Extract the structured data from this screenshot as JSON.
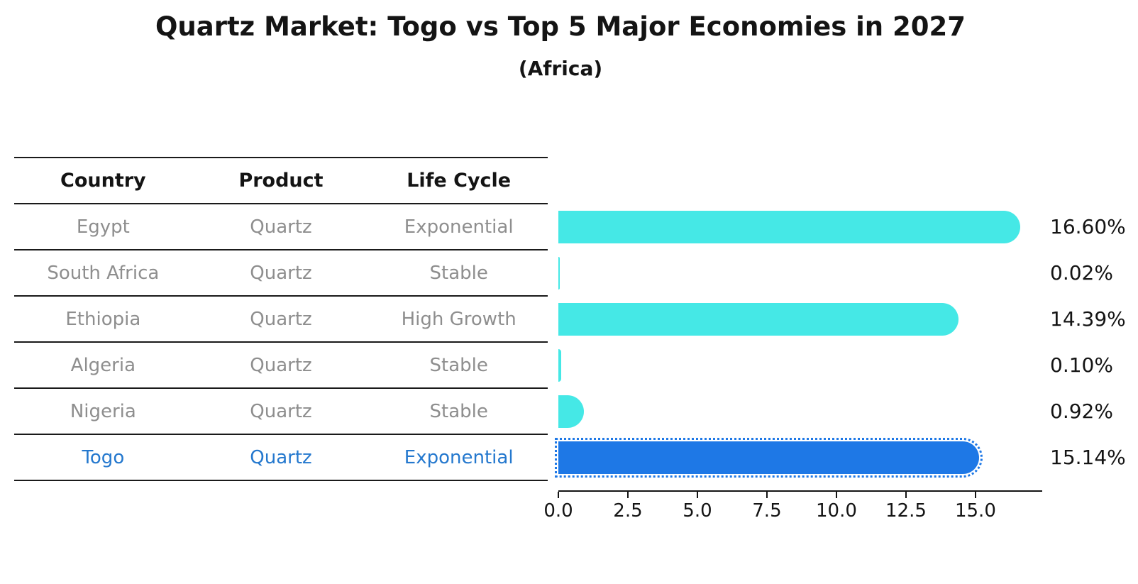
{
  "header": {
    "title": "Quartz Market: Togo vs Top 5 Major Economies in 2027",
    "subtitle": "(Africa)"
  },
  "table": {
    "headers": [
      "Country",
      "Product",
      "Life Cycle"
    ],
    "rows": [
      {
        "country": "Egypt",
        "product": "Quartz",
        "life_cycle": "Exponential",
        "highlight": false
      },
      {
        "country": "South Africa",
        "product": "Quartz",
        "life_cycle": "Stable",
        "highlight": false
      },
      {
        "country": "Ethiopia",
        "product": "Quartz",
        "life_cycle": "High Growth",
        "highlight": false
      },
      {
        "country": "Algeria",
        "product": "Quartz",
        "life_cycle": "Stable",
        "highlight": false
      },
      {
        "country": "Nigeria",
        "product": "Quartz",
        "life_cycle": "Stable",
        "highlight": false
      },
      {
        "country": "Togo",
        "product": "Quartz",
        "life_cycle": "Exponential",
        "highlight": true
      }
    ]
  },
  "chart_data": {
    "type": "bar",
    "orientation": "horizontal",
    "title": "Quartz Market: Togo vs Top 5 Major Economies in 2027",
    "subtitle": "(Africa)",
    "categories": [
      "Egypt",
      "South Africa",
      "Ethiopia",
      "Algeria",
      "Nigeria",
      "Togo"
    ],
    "values": [
      16.6,
      0.02,
      14.39,
      0.1,
      0.92,
      15.14
    ],
    "value_labels": [
      "16.60%",
      "0.02%",
      "14.39%",
      "0.10%",
      "0.92%",
      "15.14%"
    ],
    "highlight_index": 5,
    "x_ticks": [
      0.0,
      2.5,
      5.0,
      7.5,
      10.0,
      12.5,
      15.0
    ],
    "x_tick_labels": [
      "0.0",
      "2.5",
      "5.0",
      "7.5",
      "10.0",
      "12.5",
      "15.0"
    ],
    "xlim": [
      0,
      17.4
    ],
    "grid": false,
    "legend": "none"
  },
  "colors": {
    "bar_cyan": "#45e8e6",
    "bar_blue": "#1e78e6",
    "highlight_text": "#2478ce",
    "table_text": "#8e8e8e",
    "axis": "#141414"
  }
}
